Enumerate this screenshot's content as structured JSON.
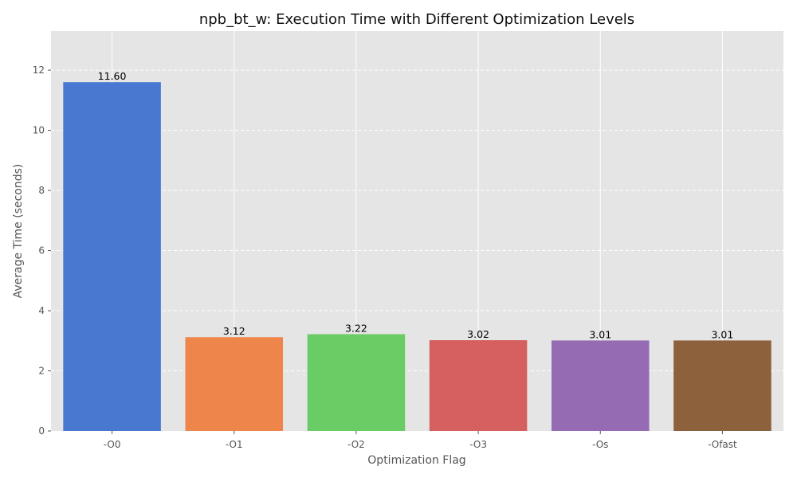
{
  "chart_data": {
    "type": "bar",
    "title": "npb_bt_w: Execution Time with Different Optimization Levels",
    "xlabel": "Optimization Flag",
    "ylabel": "Average Time (seconds)",
    "categories": [
      "-O0",
      "-O1",
      "-O2",
      "-O3",
      "-Os",
      "-Ofast"
    ],
    "values": [
      11.6,
      3.12,
      3.22,
      3.02,
      3.01,
      3.01
    ],
    "value_labels": [
      "11.60",
      "3.12",
      "3.22",
      "3.02",
      "3.01",
      "3.01"
    ],
    "colors": [
      "#4878d0",
      "#ee854a",
      "#6acc64",
      "#d65f5f",
      "#956cb4",
      "#8c613c"
    ],
    "ylim": [
      0,
      13.3
    ],
    "yticks": [
      0,
      2,
      4,
      6,
      8,
      10,
      12
    ],
    "grid": true,
    "background": "#e5e5e5"
  }
}
